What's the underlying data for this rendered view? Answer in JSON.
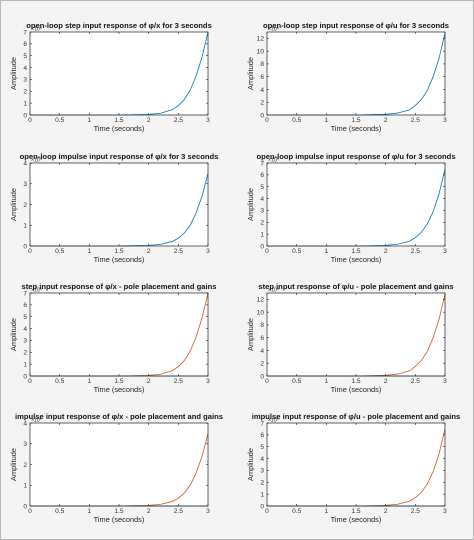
{
  "colors": {
    "blue": "#0072BD",
    "orange": "#D95319",
    "background": "#F4F4F4"
  },
  "chart_data": [
    {
      "type": "line",
      "title": "open-loop step input response of φ/x for 3 seconds",
      "xlabel": "Time (seconds)",
      "ylabel": "Amplitude",
      "xlim": [
        0,
        3
      ],
      "ylim": [
        0,
        7
      ],
      "xticks": [
        "0",
        "0.5",
        "1",
        "1.5",
        "2",
        "2.5",
        "3"
      ],
      "yticks": [
        "0",
        "1",
        "2",
        "3",
        "4",
        "5",
        "6",
        "7"
      ],
      "exponent_label": "×10⁴",
      "grid": false,
      "series": [
        {
          "color": "#0072BD",
          "x": [
            0,
            1.5,
            2.0,
            2.2,
            2.4,
            2.5,
            2.6,
            2.7,
            2.8,
            2.9,
            3.0
          ],
          "y": [
            0,
            0,
            0.05,
            0.15,
            0.45,
            0.8,
            1.3,
            2.1,
            3.3,
            4.9,
            7.0
          ]
        }
      ]
    },
    {
      "type": "line",
      "title": "open-loop step input response of φ/u for 3 seconds",
      "xlabel": "Time (seconds)",
      "ylabel": "Amplitude",
      "xlim": [
        0,
        3
      ],
      "ylim": [
        0,
        13
      ],
      "xticks": [
        "0",
        "0.5",
        "1",
        "1.5",
        "2",
        "2.5",
        "3"
      ],
      "yticks": [
        "0",
        "2",
        "4",
        "6",
        "8",
        "10",
        "12"
      ],
      "exponent_label": "×10⁴",
      "grid": false,
      "series": [
        {
          "color": "#0072BD",
          "x": [
            0,
            1.5,
            2.0,
            2.2,
            2.4,
            2.5,
            2.6,
            2.7,
            2.8,
            2.9,
            3.0
          ],
          "y": [
            0,
            0,
            0.1,
            0.3,
            0.8,
            1.5,
            2.4,
            3.8,
            6.0,
            8.9,
            12.8
          ]
        }
      ]
    },
    {
      "type": "line",
      "title": "open-loop impulse input response of φ/x for 3 seconds",
      "xlabel": "Time (seconds)",
      "ylabel": "Amplitude",
      "xlim": [
        0,
        3
      ],
      "ylim": [
        0,
        4
      ],
      "xticks": [
        "0",
        "0.5",
        "1",
        "1.5",
        "2",
        "2.5",
        "3"
      ],
      "yticks": [
        "0",
        "1",
        "2",
        "3",
        "4"
      ],
      "exponent_label": "×10⁵",
      "grid": false,
      "series": [
        {
          "color": "#0072BD",
          "x": [
            0,
            1.5,
            2.0,
            2.2,
            2.4,
            2.5,
            2.6,
            2.7,
            2.8,
            2.9,
            3.0
          ],
          "y": [
            0,
            0,
            0.03,
            0.08,
            0.22,
            0.38,
            0.62,
            1.0,
            1.6,
            2.4,
            3.5
          ]
        }
      ]
    },
    {
      "type": "line",
      "title": "open-loop impulse input response of φ/u for 3 seconds",
      "xlabel": "Time (seconds)",
      "ylabel": "Amplitude",
      "xlim": [
        0,
        3
      ],
      "ylim": [
        0,
        7
      ],
      "xticks": [
        "0",
        "0.5",
        "1",
        "1.5",
        "2",
        "2.5",
        "3"
      ],
      "yticks": [
        "0",
        "1",
        "2",
        "3",
        "4",
        "5",
        "6",
        "7"
      ],
      "exponent_label": "×10⁵",
      "grid": false,
      "series": [
        {
          "color": "#0072BD",
          "x": [
            0,
            1.5,
            2.0,
            2.2,
            2.4,
            2.5,
            2.6,
            2.7,
            2.8,
            2.9,
            3.0
          ],
          "y": [
            0,
            0,
            0.05,
            0.15,
            0.4,
            0.7,
            1.15,
            1.85,
            2.9,
            4.4,
            6.5
          ]
        }
      ]
    },
    {
      "type": "line",
      "title": "step input response of φ/x - pole placement and gains",
      "xlabel": "Time (seconds)",
      "ylabel": "Amplitude",
      "xlim": [
        0,
        3
      ],
      "ylim": [
        0,
        7
      ],
      "xticks": [
        "0",
        "0.5",
        "1",
        "1.5",
        "2",
        "2.5",
        "3"
      ],
      "yticks": [
        "0",
        "1",
        "2",
        "3",
        "4",
        "5",
        "6",
        "7"
      ],
      "exponent_label": "×10⁴",
      "grid": false,
      "series": [
        {
          "color": "#D95319",
          "x": [
            0,
            1.5,
            2.0,
            2.2,
            2.4,
            2.5,
            2.6,
            2.7,
            2.8,
            2.9,
            3.0
          ],
          "y": [
            0,
            0,
            0.05,
            0.15,
            0.45,
            0.8,
            1.3,
            2.1,
            3.3,
            4.9,
            7.0
          ]
        },
        {
          "color": "#0072BD",
          "x": [
            0,
            3.0
          ],
          "y": [
            0,
            0
          ]
        }
      ]
    },
    {
      "type": "line",
      "title": "step input response of φ/u - pole placement and gains",
      "xlabel": "Time (seconds)",
      "ylabel": "Amplitude",
      "xlim": [
        0,
        3
      ],
      "ylim": [
        0,
        13
      ],
      "xticks": [
        "0",
        "0.5",
        "1",
        "1.5",
        "2",
        "2.5",
        "3"
      ],
      "yticks": [
        "0",
        "2",
        "4",
        "6",
        "8",
        "10",
        "12"
      ],
      "exponent_label": "×10⁴",
      "grid": false,
      "series": [
        {
          "color": "#D95319",
          "x": [
            0,
            1.5,
            2.0,
            2.2,
            2.4,
            2.5,
            2.6,
            2.7,
            2.8,
            2.9,
            3.0
          ],
          "y": [
            0,
            0,
            0.1,
            0.3,
            0.8,
            1.5,
            2.4,
            3.8,
            6.0,
            8.9,
            12.8
          ]
        },
        {
          "color": "#0072BD",
          "x": [
            0,
            3.0
          ],
          "y": [
            0,
            0
          ]
        }
      ]
    },
    {
      "type": "line",
      "title": "impulse input response of φ/x - pole placement and gains",
      "xlabel": "Time (seconds)",
      "ylabel": "Amplitude",
      "xlim": [
        0,
        3
      ],
      "ylim": [
        0,
        4
      ],
      "xticks": [
        "0",
        "0.5",
        "1",
        "1.5",
        "2",
        "2.5",
        "3"
      ],
      "yticks": [
        "0",
        "1",
        "2",
        "3",
        "4"
      ],
      "exponent_label": "×10⁵",
      "grid": false,
      "series": [
        {
          "color": "#D95319",
          "x": [
            0,
            1.5,
            2.0,
            2.2,
            2.4,
            2.5,
            2.6,
            2.7,
            2.8,
            2.9,
            3.0
          ],
          "y": [
            0,
            0,
            0.03,
            0.08,
            0.22,
            0.38,
            0.62,
            1.0,
            1.6,
            2.4,
            3.5
          ]
        },
        {
          "color": "#0072BD",
          "x": [
            0,
            3.0
          ],
          "y": [
            0,
            0
          ]
        }
      ]
    },
    {
      "type": "line",
      "title": "impulse input response of φ/u - pole placement and gains",
      "xlabel": "Time (seconds)",
      "ylabel": "Amplitude",
      "xlim": [
        0,
        3
      ],
      "ylim": [
        0,
        7
      ],
      "xticks": [
        "0",
        "0.5",
        "1",
        "1.5",
        "2",
        "2.5",
        "3"
      ],
      "yticks": [
        "0",
        "1",
        "2",
        "3",
        "4",
        "5",
        "6",
        "7"
      ],
      "exponent_label": "×10⁵",
      "grid": false,
      "series": [
        {
          "color": "#D95319",
          "x": [
            0,
            1.5,
            2.0,
            2.2,
            2.4,
            2.5,
            2.6,
            2.7,
            2.8,
            2.9,
            3.0
          ],
          "y": [
            0,
            0,
            0.05,
            0.15,
            0.4,
            0.7,
            1.15,
            1.85,
            2.9,
            4.4,
            6.5
          ]
        },
        {
          "color": "#0072BD",
          "x": [
            0,
            3.0
          ],
          "y": [
            0,
            0
          ]
        }
      ]
    }
  ]
}
